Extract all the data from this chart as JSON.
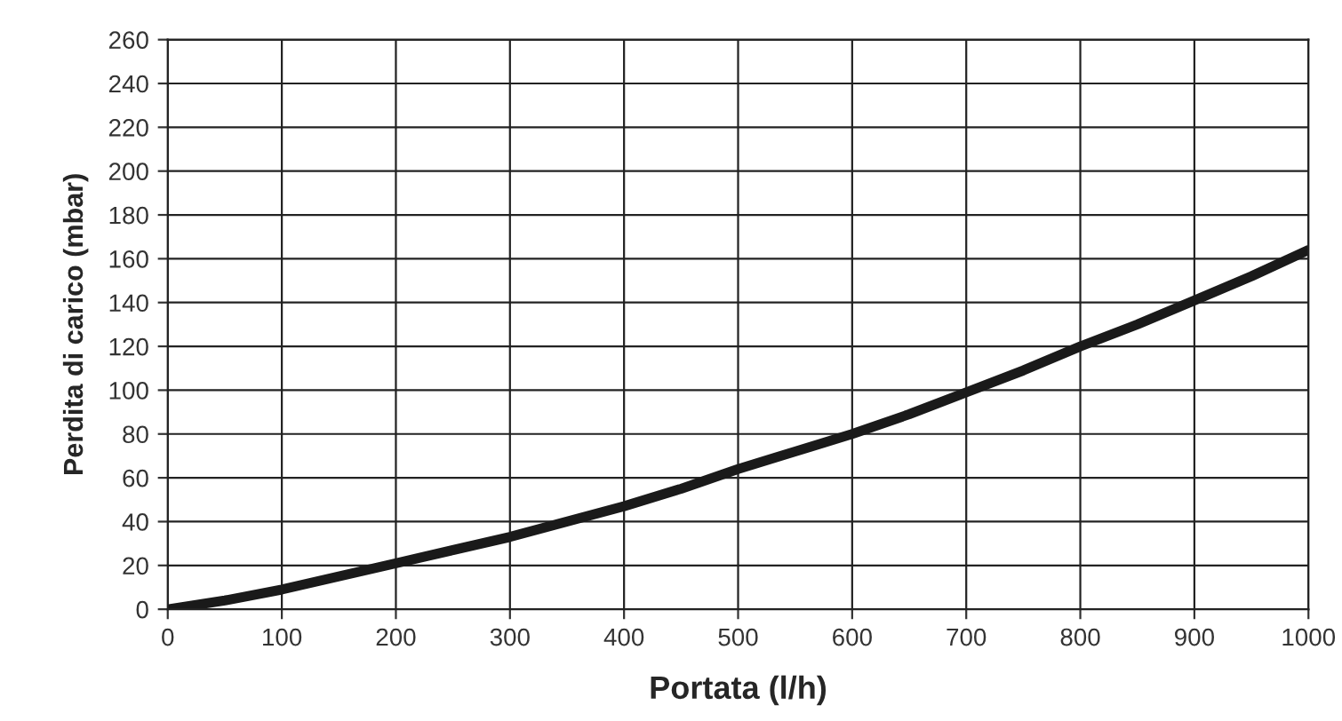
{
  "chart_data": {
    "type": "line",
    "xlabel": "Portata (l/h)",
    "ylabel": "Perdita di carico (mbar)",
    "x": [
      0,
      50,
      100,
      150,
      200,
      250,
      300,
      350,
      400,
      450,
      500,
      550,
      600,
      650,
      700,
      750,
      800,
      850,
      900,
      950,
      1000
    ],
    "series": [
      {
        "color": "#1a1a1a",
        "values": [
          0,
          4,
          9,
          15,
          21,
          27,
          33,
          40,
          47,
          55,
          64,
          72,
          80,
          89,
          99,
          109,
          120,
          130,
          141,
          152,
          164
        ]
      }
    ],
    "xlim": [
      0,
      1000
    ],
    "xticks": [
      0,
      100,
      200,
      300,
      400,
      500,
      600,
      700,
      800,
      900,
      1000
    ],
    "ylim": [
      0,
      260
    ],
    "yticks": [
      0,
      20,
      40,
      60,
      80,
      100,
      120,
      140,
      160,
      180,
      200,
      220,
      240,
      260
    ],
    "grid": true,
    "marker": "none",
    "line_style": "solid"
  }
}
